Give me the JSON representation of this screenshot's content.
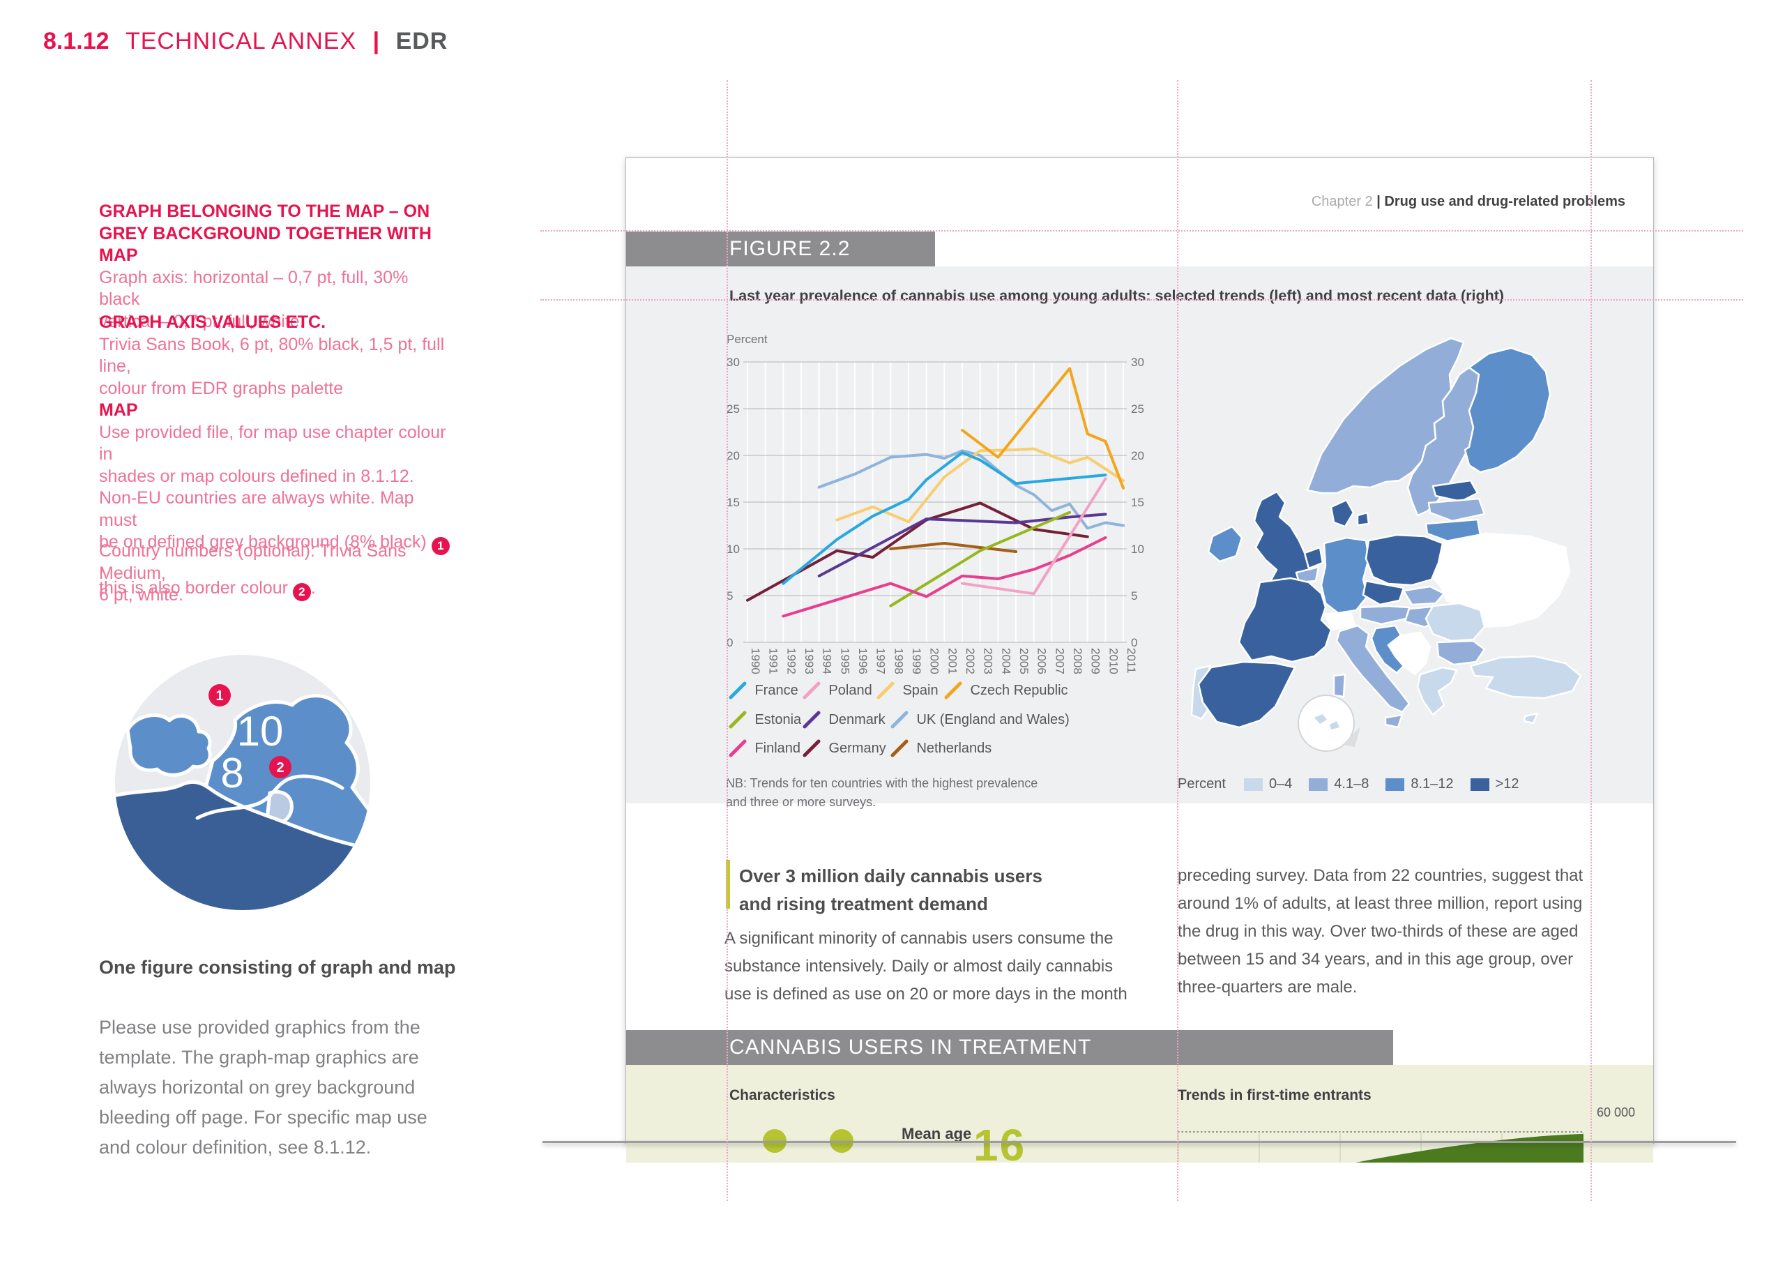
{
  "colors": {
    "pink": "#e5134e",
    "pink_body": "#ed7297",
    "guide": "#f2a3c6",
    "banner_grey": "#8d8d90",
    "figure_grey": "#eef0f1",
    "pale_green": "#eef0dc",
    "lime_green": "#bfca2c",
    "olive": "#b5c430",
    "dark_green": "#4b7a1f",
    "map_dark": "#38619e",
    "map_med": "#5c8fca",
    "map_steel": "#92aed8",
    "map_light": "#c9d9ec"
  },
  "header": {
    "number": "8.1.12",
    "title": "TECHNICAL ANNEX",
    "divider": "|",
    "brand": "EDR"
  },
  "left": {
    "s1": {
      "heading": "GRAPH BELONGING TO THE MAP – ON GREY BACKGROUND TOGETHER WITH MAP",
      "body": "Graph axis: horizontal – 0,7 pt, full, 30% black\nvertical – 0,7 pt, full, white."
    },
    "s2": {
      "heading": "GRAPH AXIS VALUES ETC.",
      "body": "Trivia Sans Book, 6 pt, 80% black, 1,5 pt, full line,\ncolour from EDR graphs palette"
    },
    "s3": {
      "heading": "MAP",
      "body1": "Use provided file, for map use chapter colour in\nshades or map colours defined in 8.1.12.\nNon-EU countries are always white. Map must\nbe on defined grey background (8% black) ",
      "badge1": "1",
      "body2": ",\nthis is also border colour ",
      "badge2": "2",
      "body3": "."
    },
    "note": "Country numbers (optional): Trivia Sans Medium,\n6 pt, white.",
    "inset": {
      "number_big": "10",
      "number_small": "8",
      "badge1": "1",
      "badge2": "2"
    },
    "subheading": "One figure consisting of graph and map",
    "paragraph": "Please use provided graphics from the\ntemplate. The graph-map graphics are\nalways horizontal on grey background\nbleeding off page. For specific map use\nand colour definition, see 8.1.12."
  },
  "mock": {
    "chapter_label": "Chapter 2",
    "chapter_title": "| Drug use and drug-related problems",
    "figure_banner": "FIGURE 2.2",
    "figure_title": "Last year prevalence of cannabis use among young adults: selected trends (left) and most recent data (right)",
    "nb": "NB: Trends for ten countries with the highest prevalence\nand three or more surveys.",
    "section_banner": "CANNABIS USERS IN TREATMENT"
  },
  "story": {
    "headline_line1": "Over 3 million daily cannabis users",
    "headline_line2": "and rising treatment demand",
    "col1": "A significant minority of cannabis users consume the\nsubstance intensively. Daily or almost daily cannabis\nuse is defined as use on 20 or more days in the month",
    "col2": "preceding survey. Data from 22 countries, suggest that\naround 1% of adults, at least three million, report using\nthe drug in this way. Over two-thirds of these are aged\nbetween 15 and 34 years, and in this age group, over\nthree-quarters are male."
  },
  "treatment": {
    "left_heading": "Characteristics",
    "right_heading": "Trends in first-time entrants",
    "mean_age_label": "Mean age",
    "big_number": "16",
    "trend_y_label": "60 000"
  },
  "map": {
    "legend_label": "Percent",
    "classes": [
      {
        "label": "0–4",
        "color": "#c9d9ec",
        "countries": [
          "Portugal",
          "Romania",
          "Greece",
          "Turkey",
          "Cyprus",
          "Malta"
        ]
      },
      {
        "label": "4.1–8",
        "color": "#92aed8",
        "countries": [
          "Norway",
          "Sweden",
          "Latvia",
          "Belgium",
          "Austria",
          "Hungary",
          "Slovakia",
          "Italy",
          "Bulgaria"
        ]
      },
      {
        "label": "8.1–12",
        "color": "#5c8fca",
        "countries": [
          "Finland",
          "Ireland",
          "Germany",
          "Lithuania",
          "Croatia"
        ]
      },
      {
        "label": ">12",
        "color": "#38619e",
        "countries": [
          "United Kingdom",
          "France",
          "Spain",
          "Denmark",
          "Netherlands",
          "Poland",
          "Czech Republic",
          "Estonia"
        ]
      }
    ],
    "non_eu_note": "Non-EU countries white"
  },
  "chart_data": {
    "type": "line",
    "title": "Last year prevalence of cannabis use among young adults: selected trends",
    "ylabel": "Percent",
    "x_range": [
      1990,
      2011
    ],
    "ylim": [
      0,
      30
    ],
    "yticks": [
      0,
      5,
      10,
      15,
      20,
      25,
      30
    ],
    "grid": "horizontal grey, vertical white per year, labels both sides",
    "legend_position": "below",
    "series": [
      {
        "name": "UK (England and Wales)",
        "color": "#8fb4dc",
        "points": [
          [
            1994,
            16.6
          ],
          [
            1996,
            18.0
          ],
          [
            1998,
            19.8
          ],
          [
            2000,
            20.1
          ],
          [
            2001,
            19.7
          ],
          [
            2002,
            20.5
          ],
          [
            2003,
            20.0
          ],
          [
            2005,
            16.8
          ],
          [
            2006,
            15.8
          ],
          [
            2007,
            14.1
          ],
          [
            2008,
            14.8
          ],
          [
            2009,
            12.2
          ],
          [
            2010,
            12.8
          ],
          [
            2011,
            12.5
          ]
        ]
      },
      {
        "name": "Spain",
        "color": "#f8ce70",
        "points": [
          [
            1995,
            13.1
          ],
          [
            1997,
            14.5
          ],
          [
            1999,
            12.9
          ],
          [
            2001,
            17.7
          ],
          [
            2003,
            20.5
          ],
          [
            2005,
            20.6
          ],
          [
            2006,
            20.7
          ],
          [
            2008,
            19.2
          ],
          [
            2009,
            19.8
          ],
          [
            2011,
            17.3
          ]
        ]
      },
      {
        "name": "Germany",
        "color": "#742038",
        "points": [
          [
            1990,
            4.5
          ],
          [
            1995,
            9.8
          ],
          [
            1997,
            9.1
          ],
          [
            2000,
            13.1
          ],
          [
            2003,
            14.9
          ],
          [
            2006,
            12.1
          ],
          [
            2009,
            11.3
          ]
        ]
      },
      {
        "name": "Denmark",
        "color": "#5a3794",
        "points": [
          [
            1994,
            7.1
          ],
          [
            2000,
            13.2
          ],
          [
            2005,
            12.8
          ],
          [
            2008,
            13.4
          ],
          [
            2010,
            13.7
          ]
        ]
      },
      {
        "name": "Netherlands",
        "color": "#a55d17",
        "points": [
          [
            1998,
            10.0
          ],
          [
            2001,
            10.6
          ],
          [
            2005,
            9.7
          ]
        ]
      },
      {
        "name": "Estonia",
        "color": "#96b71e",
        "points": [
          [
            1998,
            3.9
          ],
          [
            2003,
            9.8
          ],
          [
            2008,
            13.9
          ]
        ]
      },
      {
        "name": "Finland",
        "color": "#e73f8e",
        "points": [
          [
            1992,
            2.8
          ],
          [
            1998,
            6.3
          ],
          [
            2000,
            4.9
          ],
          [
            2002,
            7.1
          ],
          [
            2004,
            6.8
          ],
          [
            2006,
            7.8
          ],
          [
            2008,
            9.3
          ],
          [
            2010,
            11.2
          ]
        ]
      },
      {
        "name": "Poland",
        "color": "#f2a3c5",
        "points": [
          [
            2002,
            6.3
          ],
          [
            2006,
            5.2
          ],
          [
            2010,
            17.5
          ]
        ]
      },
      {
        "name": "France",
        "color": "#29a8e0",
        "points": [
          [
            1992,
            6.3
          ],
          [
            1995,
            11.0
          ],
          [
            1997,
            13.5
          ],
          [
            1999,
            15.3
          ],
          [
            2000,
            17.4
          ],
          [
            2002,
            20.3
          ],
          [
            2003,
            19.5
          ],
          [
            2005,
            17.0
          ],
          [
            2010,
            17.9
          ]
        ]
      },
      {
        "name": "Czech Republic",
        "color": "#f2a51d",
        "points": [
          [
            2002,
            22.7
          ],
          [
            2004,
            19.8
          ],
          [
            2008,
            29.3
          ],
          [
            2009,
            22.3
          ],
          [
            2010,
            21.5
          ],
          [
            2011,
            16.5
          ]
        ]
      }
    ],
    "legend_order": [
      "France",
      "Poland",
      "Spain",
      "Czech Republic",
      "Estonia",
      "Denmark",
      "UK (England and Wales)",
      "Finland",
      "Germany",
      "Netherlands"
    ]
  }
}
